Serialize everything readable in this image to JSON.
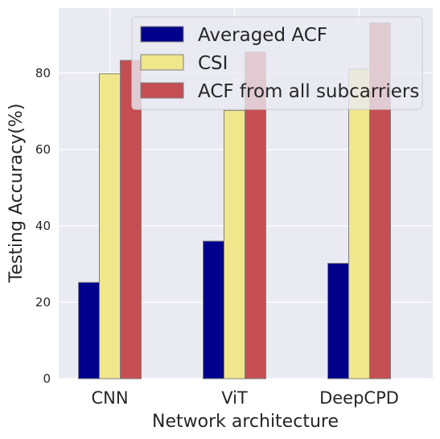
{
  "chart_data": {
    "type": "bar",
    "title": "",
    "xlabel": "Network architecture",
    "ylabel": "Testing Accuracy(%)",
    "categories": [
      "CNN",
      "ViT",
      "DeepCPD"
    ],
    "series": [
      {
        "name": "Averaged ACF",
        "values": [
          25.2,
          36.0,
          30.2
        ],
        "color": "#00008b"
      },
      {
        "name": "CSI",
        "values": [
          79.8,
          70.2,
          81.0
        ],
        "color": "#f0e68c"
      },
      {
        "name": "ACF from all subcarriers",
        "values": [
          83.3,
          85.5,
          93.1
        ],
        "color": "#c44e52"
      }
    ],
    "ylim": [
      0,
      97
    ],
    "yticks": [
      0,
      20,
      40,
      60,
      80
    ],
    "grid": true,
    "legend_position": "top-right",
    "colors": {
      "plot_background": "#eaeaf2",
      "grid": "#ffffff",
      "bar_edge": "#7f7f7f",
      "text": "#262626"
    }
  }
}
